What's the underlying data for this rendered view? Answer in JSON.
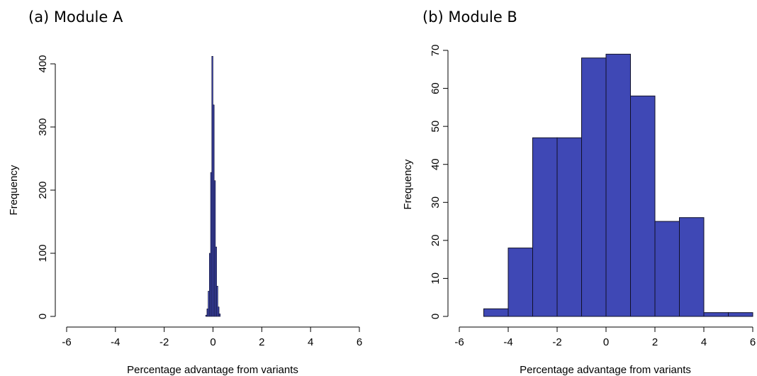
{
  "chart_data": [
    {
      "type": "bar",
      "title": "(a) Module A",
      "xlabel": "Percentage advantage from variants",
      "ylabel": "Frequency",
      "xlim": [
        -6,
        6
      ],
      "ylim": [
        0,
        420
      ],
      "xticks": [
        "-6",
        "-4",
        "-2",
        "0",
        "2",
        "4",
        "6"
      ],
      "yticks": [
        "0",
        "100",
        "200",
        "300",
        "400"
      ],
      "bar_color": "#3f48b5",
      "bins": [
        {
          "x0": -0.3,
          "x1": -0.25,
          "value": 2
        },
        {
          "x0": -0.25,
          "x1": -0.2,
          "value": 12
        },
        {
          "x0": -0.2,
          "x1": -0.15,
          "value": 40
        },
        {
          "x0": -0.15,
          "x1": -0.1,
          "value": 100
        },
        {
          "x0": -0.1,
          "x1": -0.05,
          "value": 228
        },
        {
          "x0": -0.05,
          "x1": 0.0,
          "value": 412
        },
        {
          "x0": 0.0,
          "x1": 0.05,
          "value": 335
        },
        {
          "x0": 0.05,
          "x1": 0.1,
          "value": 215
        },
        {
          "x0": 0.1,
          "x1": 0.15,
          "value": 110
        },
        {
          "x0": 0.15,
          "x1": 0.2,
          "value": 48
        },
        {
          "x0": 0.2,
          "x1": 0.25,
          "value": 15
        },
        {
          "x0": 0.25,
          "x1": 0.3,
          "value": 4
        }
      ]
    },
    {
      "type": "bar",
      "title": "(b) Module B",
      "xlabel": "Percentage advantage from variants",
      "ylabel": "Frequency",
      "xlim": [
        -6,
        6
      ],
      "ylim": [
        0,
        70
      ],
      "xticks": [
        "-6",
        "-4",
        "-2",
        "0",
        "2",
        "4",
        "6"
      ],
      "yticks": [
        "0",
        "10",
        "20",
        "30",
        "40",
        "50",
        "60",
        "70"
      ],
      "bar_color": "#3f48b5",
      "bins": [
        {
          "x0": -5,
          "x1": -4,
          "value": 2
        },
        {
          "x0": -4,
          "x1": -3,
          "value": 18
        },
        {
          "x0": -3,
          "x1": -2,
          "value": 47
        },
        {
          "x0": -2,
          "x1": -1,
          "value": 47
        },
        {
          "x0": -1,
          "x1": 0,
          "value": 68
        },
        {
          "x0": 0,
          "x1": 1,
          "value": 69
        },
        {
          "x0": 1,
          "x1": 2,
          "value": 58
        },
        {
          "x0": 2,
          "x1": 3,
          "value": 25
        },
        {
          "x0": 3,
          "x1": 4,
          "value": 26
        },
        {
          "x0": 4,
          "x1": 5,
          "value": 1
        },
        {
          "x0": 5,
          "x1": 6,
          "value": 1
        }
      ]
    }
  ]
}
